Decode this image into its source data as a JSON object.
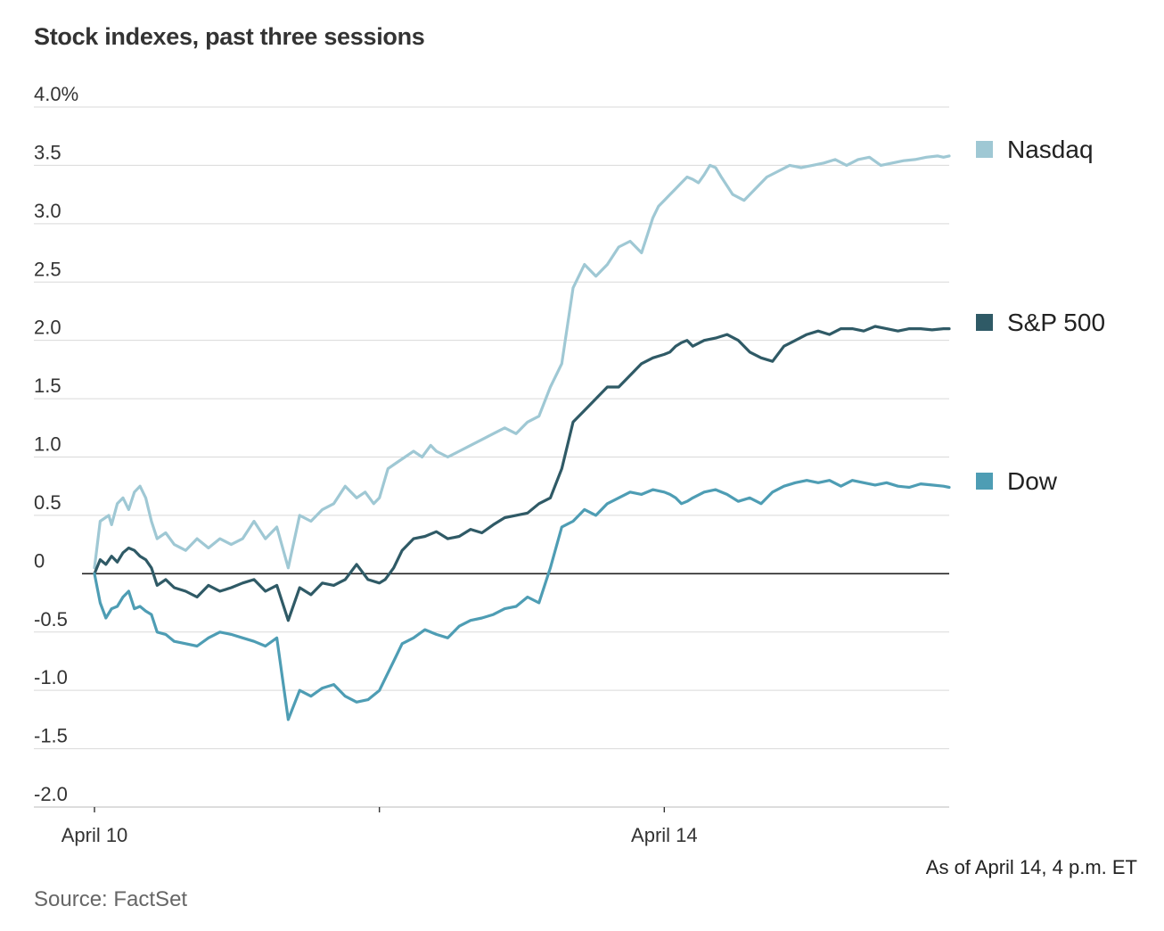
{
  "title": "Stock indexes, past three sessions",
  "note": "As of April 14, 4 p.m. ET",
  "source": "Source: FactSet",
  "chart_data": {
    "type": "line",
    "title": "Stock indexes, past three sessions",
    "xlabel": "",
    "ylabel": "",
    "ylim": [
      -2.0,
      4.0
    ],
    "y_ticks": [
      4.0,
      3.5,
      3.0,
      2.5,
      2.0,
      1.5,
      1.0,
      0.5,
      0,
      -0.5,
      -1.0,
      -1.5,
      -2.0
    ],
    "y_tick_labels": [
      "4.0%",
      "3.5",
      "3.0",
      "2.5",
      "2.0",
      "1.5",
      "1.0",
      "0.5",
      "0",
      "-0.5",
      "-1.0",
      "-1.5",
      "-2.0"
    ],
    "x_range": [
      0,
      3
    ],
    "x_session_boundaries": [
      0,
      1,
      2
    ],
    "x_tick_labels": [
      {
        "x": 0,
        "label": "April 10"
      },
      {
        "x": 1,
        "label": ""
      },
      {
        "x": 2,
        "label": "April 14"
      }
    ],
    "zero_line": true,
    "legend_position": "right",
    "series": [
      {
        "name": "Nasdaq",
        "color": "#9fc8d4",
        "x": [
          0.0,
          0.02,
          0.05,
          0.06,
          0.08,
          0.1,
          0.12,
          0.14,
          0.16,
          0.18,
          0.2,
          0.22,
          0.25,
          0.28,
          0.32,
          0.36,
          0.4,
          0.44,
          0.48,
          0.52,
          0.56,
          0.6,
          0.64,
          0.68,
          0.72,
          0.76,
          0.8,
          0.84,
          0.88,
          0.92,
          0.95,
          0.98,
          1.0,
          1.03,
          1.06,
          1.09,
          1.12,
          1.15,
          1.18,
          1.2,
          1.24,
          1.28,
          1.32,
          1.36,
          1.4,
          1.44,
          1.48,
          1.52,
          1.56,
          1.6,
          1.64,
          1.68,
          1.72,
          1.76,
          1.8,
          1.84,
          1.88,
          1.92,
          1.94,
          1.96,
          1.98,
          2.0,
          2.02,
          2.04,
          2.06,
          2.08,
          2.1,
          2.12,
          2.14,
          2.16,
          2.18,
          2.2,
          2.24,
          2.28,
          2.32,
          2.36,
          2.4,
          2.44,
          2.48,
          2.52,
          2.56,
          2.6,
          2.64,
          2.68,
          2.72,
          2.76,
          2.8,
          2.84,
          2.88,
          2.92,
          2.96,
          2.98,
          3.0
        ],
        "values": [
          0.05,
          0.45,
          0.5,
          0.42,
          0.6,
          0.65,
          0.55,
          0.7,
          0.75,
          0.65,
          0.45,
          0.3,
          0.35,
          0.25,
          0.2,
          0.3,
          0.22,
          0.3,
          0.25,
          0.3,
          0.45,
          0.3,
          0.4,
          0.05,
          0.5,
          0.45,
          0.55,
          0.6,
          0.75,
          0.65,
          0.7,
          0.6,
          0.65,
          0.9,
          0.95,
          1.0,
          1.05,
          1.0,
          1.1,
          1.05,
          1.0,
          1.05,
          1.1,
          1.15,
          1.2,
          1.25,
          1.2,
          1.3,
          1.35,
          1.6,
          1.8,
          2.45,
          2.65,
          2.55,
          2.65,
          2.8,
          2.85,
          2.75,
          2.9,
          3.05,
          3.15,
          3.2,
          3.25,
          3.3,
          3.35,
          3.4,
          3.38,
          3.35,
          3.42,
          3.5,
          3.48,
          3.4,
          3.25,
          3.2,
          3.3,
          3.4,
          3.45,
          3.5,
          3.48,
          3.5,
          3.52,
          3.55,
          3.5,
          3.55,
          3.57,
          3.5,
          3.52,
          3.54,
          3.55,
          3.57,
          3.58,
          3.57,
          3.58
        ]
      },
      {
        "name": "S&P 500",
        "color": "#2f5a66",
        "x": [
          0.0,
          0.02,
          0.04,
          0.06,
          0.08,
          0.1,
          0.12,
          0.14,
          0.16,
          0.18,
          0.2,
          0.22,
          0.25,
          0.28,
          0.32,
          0.36,
          0.4,
          0.44,
          0.48,
          0.52,
          0.56,
          0.6,
          0.64,
          0.68,
          0.72,
          0.76,
          0.8,
          0.84,
          0.88,
          0.92,
          0.96,
          1.0,
          1.02,
          1.05,
          1.08,
          1.12,
          1.16,
          1.2,
          1.24,
          1.28,
          1.32,
          1.36,
          1.4,
          1.44,
          1.48,
          1.52,
          1.56,
          1.6,
          1.64,
          1.68,
          1.72,
          1.76,
          1.8,
          1.84,
          1.88,
          1.92,
          1.96,
          2.0,
          2.02,
          2.04,
          2.06,
          2.08,
          2.1,
          2.14,
          2.18,
          2.22,
          2.26,
          2.3,
          2.34,
          2.38,
          2.42,
          2.46,
          2.5,
          2.54,
          2.58,
          2.62,
          2.66,
          2.7,
          2.74,
          2.78,
          2.82,
          2.86,
          2.9,
          2.94,
          2.98,
          3.0
        ],
        "values": [
          0.0,
          0.12,
          0.08,
          0.15,
          0.1,
          0.18,
          0.22,
          0.2,
          0.15,
          0.12,
          0.05,
          -0.1,
          -0.05,
          -0.12,
          -0.15,
          -0.2,
          -0.1,
          -0.15,
          -0.12,
          -0.08,
          -0.05,
          -0.15,
          -0.1,
          -0.4,
          -0.12,
          -0.18,
          -0.08,
          -0.1,
          -0.05,
          0.08,
          -0.05,
          -0.08,
          -0.05,
          0.05,
          0.2,
          0.3,
          0.32,
          0.36,
          0.3,
          0.32,
          0.38,
          0.35,
          0.42,
          0.48,
          0.5,
          0.52,
          0.6,
          0.65,
          0.9,
          1.3,
          1.4,
          1.5,
          1.6,
          1.6,
          1.7,
          1.8,
          1.85,
          1.88,
          1.9,
          1.95,
          1.98,
          2.0,
          1.95,
          2.0,
          2.02,
          2.05,
          2.0,
          1.9,
          1.85,
          1.82,
          1.95,
          2.0,
          2.05,
          2.08,
          2.05,
          2.1,
          2.1,
          2.08,
          2.12,
          2.1,
          2.08,
          2.1,
          2.1,
          2.09,
          2.1,
          2.1
        ]
      },
      {
        "name": "Dow",
        "color": "#4e9db4",
        "x": [
          0.0,
          0.02,
          0.04,
          0.06,
          0.08,
          0.1,
          0.12,
          0.14,
          0.16,
          0.18,
          0.2,
          0.22,
          0.25,
          0.28,
          0.32,
          0.36,
          0.4,
          0.44,
          0.48,
          0.52,
          0.56,
          0.6,
          0.64,
          0.68,
          0.72,
          0.76,
          0.8,
          0.84,
          0.88,
          0.92,
          0.96,
          1.0,
          1.02,
          1.05,
          1.08,
          1.12,
          1.16,
          1.2,
          1.24,
          1.28,
          1.32,
          1.36,
          1.4,
          1.44,
          1.48,
          1.52,
          1.56,
          1.6,
          1.64,
          1.68,
          1.72,
          1.76,
          1.8,
          1.84,
          1.88,
          1.92,
          1.96,
          2.0,
          2.02,
          2.04,
          2.06,
          2.08,
          2.1,
          2.14,
          2.18,
          2.22,
          2.26,
          2.3,
          2.34,
          2.38,
          2.42,
          2.46,
          2.5,
          2.54,
          2.58,
          2.62,
          2.66,
          2.7,
          2.74,
          2.78,
          2.82,
          2.86,
          2.9,
          2.94,
          2.98,
          3.0
        ],
        "values": [
          0.0,
          -0.25,
          -0.38,
          -0.3,
          -0.28,
          -0.2,
          -0.15,
          -0.3,
          -0.28,
          -0.32,
          -0.35,
          -0.5,
          -0.52,
          -0.58,
          -0.6,
          -0.62,
          -0.55,
          -0.5,
          -0.52,
          -0.55,
          -0.58,
          -0.62,
          -0.55,
          -1.25,
          -1.0,
          -1.05,
          -0.98,
          -0.95,
          -1.05,
          -1.1,
          -1.08,
          -1.0,
          -0.9,
          -0.75,
          -0.6,
          -0.55,
          -0.48,
          -0.52,
          -0.55,
          -0.45,
          -0.4,
          -0.38,
          -0.35,
          -0.3,
          -0.28,
          -0.2,
          -0.25,
          0.05,
          0.4,
          0.45,
          0.55,
          0.5,
          0.6,
          0.65,
          0.7,
          0.68,
          0.72,
          0.7,
          0.68,
          0.65,
          0.6,
          0.62,
          0.65,
          0.7,
          0.72,
          0.68,
          0.62,
          0.65,
          0.6,
          0.7,
          0.75,
          0.78,
          0.8,
          0.78,
          0.8,
          0.75,
          0.8,
          0.78,
          0.76,
          0.78,
          0.75,
          0.74,
          0.77,
          0.76,
          0.75,
          0.74
        ]
      }
    ]
  }
}
